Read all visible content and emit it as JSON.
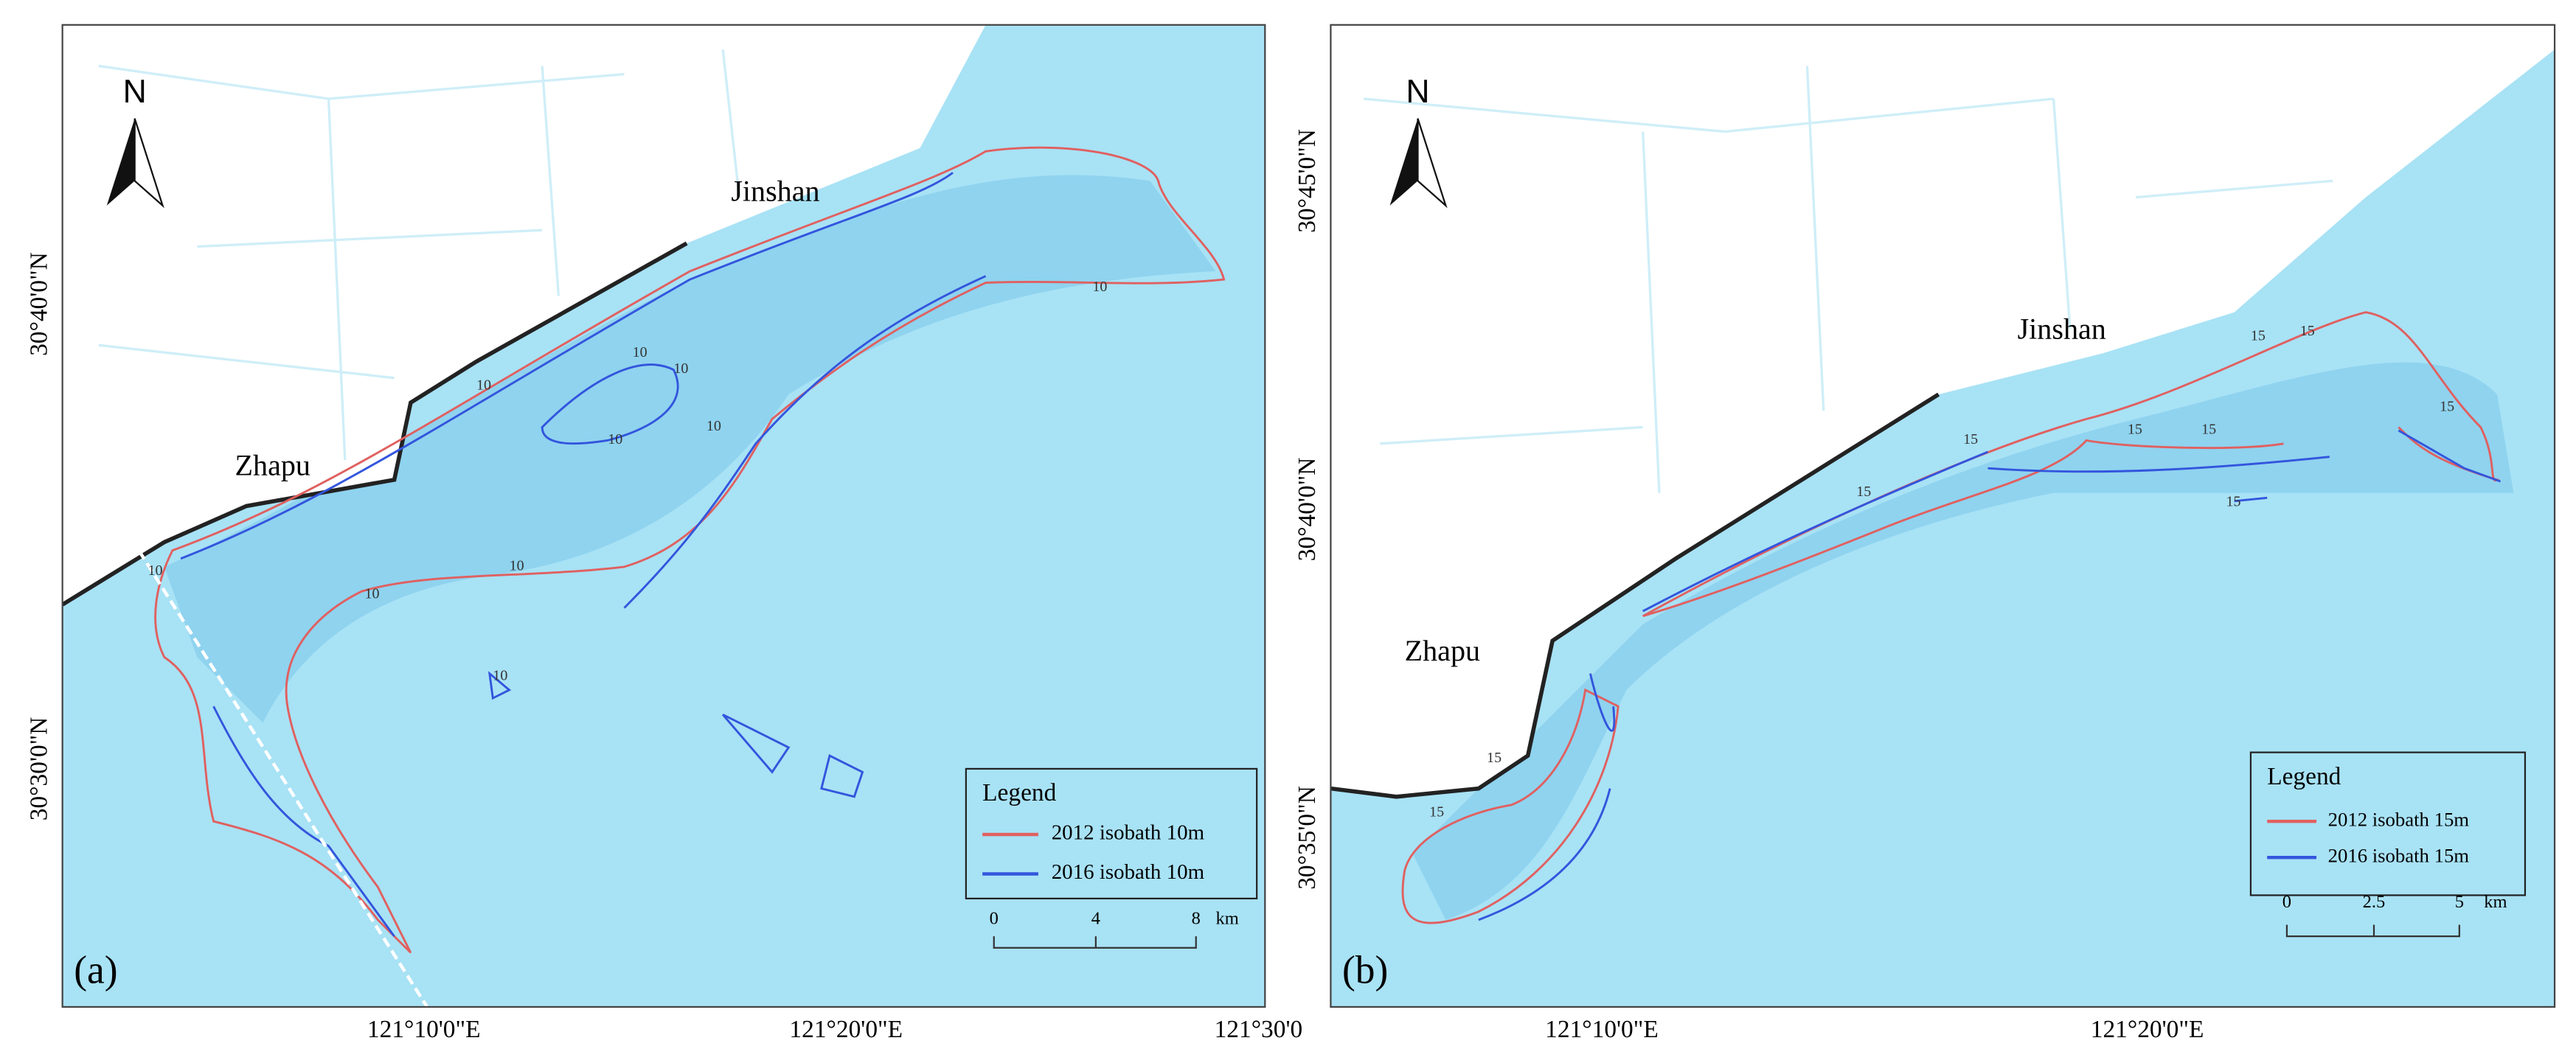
{
  "panels": [
    {
      "label": "(a)",
      "north": "N",
      "places": [
        "Jinshan",
        "Zhapu"
      ],
      "lat_labels": [
        "30°40'0\"N",
        "30°30'0\"N"
      ],
      "lon_labels": [
        "121°10'0\"E",
        "121°20'0\"E",
        "121°30'0"
      ],
      "legend": {
        "title": "Legend",
        "entries": [
          "2012 isobath 10m",
          "2016 isobath 10m"
        ]
      },
      "scale": {
        "ticks": [
          "0",
          "4",
          "8"
        ],
        "unit": "km"
      },
      "contour_labels": [
        "10",
        "10",
        "10",
        "10",
        "10",
        "10",
        "10",
        "10",
        "10",
        "10"
      ]
    },
    {
      "label": "(b)",
      "north": "N",
      "places": [
        "Jinshan",
        "Zhapu"
      ],
      "lat_labels": [
        "30°45'0\"N",
        "30°40'0\"N",
        "30°35'0\"N"
      ],
      "lon_labels": [
        "121°10'0\"E",
        "121°20'0\"E"
      ],
      "legend": {
        "title": "Legend",
        "entries": [
          "2012 isobath 15m",
          "2016 isobath 15m"
        ]
      },
      "scale": {
        "ticks": [
          "0",
          "2.5",
          "5"
        ],
        "unit": "km"
      },
      "contour_labels": [
        "15",
        "15",
        "15",
        "15",
        "15",
        "15",
        "15",
        "15",
        "15",
        "15"
      ]
    }
  ]
}
